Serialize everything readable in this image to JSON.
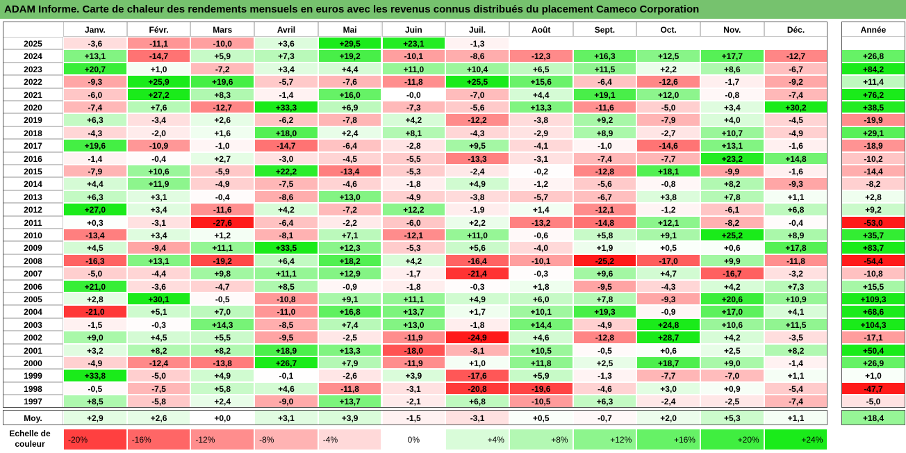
{
  "title": "ADAM Informe. Carte de chaleur des rendements mensuels en euros avec les revenus connus distribués du placement Cameco Corporation",
  "chart_data": {
    "type": "heatmap",
    "months": [
      "Janv.",
      "Févr.",
      "Mars",
      "Avril",
      "Mai",
      "Juin",
      "Juil.",
      "Août",
      "Sept.",
      "Oct.",
      "Nov.",
      "Déc."
    ],
    "annual_label": "Année",
    "rows": [
      {
        "year": "2025",
        "values": [
          "-3,6",
          "-11,1",
          "-10,0",
          "+3,6",
          "+29,5",
          "+23,1",
          "-1,3",
          "",
          "",
          "",
          "",
          ""
        ],
        "annual": ""
      },
      {
        "year": "2024",
        "values": [
          "+13,1",
          "-14,7",
          "+5,9",
          "+7,3",
          "+19,2",
          "-10,1",
          "-8,6",
          "-12,3",
          "+16,3",
          "+12,5",
          "+17,7",
          "-12,7"
        ],
        "annual": "+26,8"
      },
      {
        "year": "2023",
        "values": [
          "+20,7",
          "+1,0",
          "-7,2",
          "+3,4",
          "+4,4",
          "+11,0",
          "+10,4",
          "+6,5",
          "+11,5",
          "+2,2",
          "+8,6",
          "-6,7"
        ],
        "annual": "+84,2"
      },
      {
        "year": "2022",
        "values": [
          "-9,3",
          "+25,9",
          "+19,6",
          "-5,7",
          "-7,6",
          "-11,8",
          "+25,5",
          "+15,6",
          "-6,4",
          "-12,6",
          "-1,7",
          "-9,2"
        ],
        "annual": "+11,4"
      },
      {
        "year": "2021",
        "values": [
          "-6,0",
          "+27,2",
          "+8,3",
          "-1,4",
          "+16,0",
          "-0,0",
          "-7,0",
          "+4,4",
          "+19,1",
          "+12,0",
          "-0,8",
          "-7,4"
        ],
        "annual": "+76,2"
      },
      {
        "year": "2020",
        "values": [
          "-7,4",
          "+7,6",
          "-12,7",
          "+33,3",
          "+6,9",
          "-7,3",
          "-5,6",
          "+13,3",
          "-11,6",
          "-5,0",
          "+3,4",
          "+30,2"
        ],
        "annual": "+38,5"
      },
      {
        "year": "2019",
        "values": [
          "+6,3",
          "-3,4",
          "+2,6",
          "-6,2",
          "-7,8",
          "+4,2",
          "-12,2",
          "-3,8",
          "+9,2",
          "-7,9",
          "+4,0",
          "-4,5"
        ],
        "annual": "-19,9"
      },
      {
        "year": "2018",
        "values": [
          "-4,3",
          "-2,0",
          "+1,6",
          "+18,0",
          "+2,4",
          "+8,1",
          "-4,3",
          "-2,9",
          "+8,9",
          "-2,7",
          "+10,7",
          "-4,9"
        ],
        "annual": "+29,1"
      },
      {
        "year": "2017",
        "values": [
          "+19,6",
          "-10,9",
          "-1,0",
          "-14,7",
          "-6,4",
          "-2,8",
          "+9,5",
          "-4,1",
          "-1,0",
          "-14,6",
          "+13,1",
          "-1,6"
        ],
        "annual": "-18,9"
      },
      {
        "year": "2016",
        "values": [
          "-1,4",
          "-0,4",
          "+2,7",
          "-3,0",
          "-4,5",
          "-5,5",
          "-13,3",
          "-3,1",
          "-7,4",
          "-7,7",
          "+23,2",
          "+14,8"
        ],
        "annual": "-10,2"
      },
      {
        "year": "2015",
        "values": [
          "-7,9",
          "+10,6",
          "-5,9",
          "+22,2",
          "-13,4",
          "-5,3",
          "-2,4",
          "-0,2",
          "-12,8",
          "+18,1",
          "-9,9",
          "-1,6"
        ],
        "annual": "-14,4"
      },
      {
        "year": "2014",
        "values": [
          "+4,4",
          "+11,9",
          "-4,9",
          "-7,5",
          "-4,6",
          "-1,8",
          "+4,9",
          "-1,2",
          "-5,6",
          "-0,8",
          "+8,2",
          "-9,3"
        ],
        "annual": "-8,2"
      },
      {
        "year": "2013",
        "values": [
          "+6,3",
          "+3,1",
          "-0,4",
          "-8,6",
          "+13,0",
          "-4,9",
          "-3,8",
          "-5,7",
          "-6,7",
          "+3,8",
          "+7,8",
          "+1,1"
        ],
        "annual": "+2,8"
      },
      {
        "year": "2012",
        "values": [
          "+27,0",
          "+3,4",
          "-11,6",
          "+4,2",
          "-7,2",
          "+12,2",
          "-1,9",
          "+1,4",
          "-12,1",
          "-1,2",
          "-6,1",
          "+6,8"
        ],
        "annual": "+9,2"
      },
      {
        "year": "2011",
        "values": [
          "+0,3",
          "-3,1",
          "-27,6",
          "-6,4",
          "-2,2",
          "-6,0",
          "+2,2",
          "-13,2",
          "-14,8",
          "+12,1",
          "-8,2",
          "-0,4"
        ],
        "annual": "-53,0"
      },
      {
        "year": "2010",
        "values": [
          "-13,4",
          "+3,4",
          "+1,2",
          "-8,1",
          "+7,1",
          "-12,1",
          "+11,0",
          "-0,6",
          "+5,8",
          "+9,1",
          "+25,2",
          "+8,9"
        ],
        "annual": "+35,7"
      },
      {
        "year": "2009",
        "values": [
          "+4,5",
          "-9,4",
          "+11,1",
          "+33,5",
          "+12,3",
          "-5,3",
          "+5,6",
          "-4,0",
          "+1,9",
          "+0,5",
          "+0,6",
          "+17,8"
        ],
        "annual": "+83,7"
      },
      {
        "year": "2008",
        "values": [
          "-16,3",
          "+13,1",
          "-19,2",
          "+6,4",
          "+18,2",
          "+4,2",
          "-16,4",
          "-10,1",
          "-25,2",
          "-17,0",
          "+9,9",
          "-11,8"
        ],
        "annual": "-54,4"
      },
      {
        "year": "2007",
        "values": [
          "-5,0",
          "-4,4",
          "+9,8",
          "+11,1",
          "+12,9",
          "-1,7",
          "-21,4",
          "-0,3",
          "+9,6",
          "+4,7",
          "-16,7",
          "-3,2"
        ],
        "annual": "-10,8"
      },
      {
        "year": "2006",
        "values": [
          "+21,0",
          "-3,6",
          "-4,7",
          "+8,5",
          "-0,9",
          "-1,8",
          "-0,3",
          "+1,8",
          "-9,5",
          "-4,3",
          "+4,2",
          "+7,3"
        ],
        "annual": "+15,5"
      },
      {
        "year": "2005",
        "values": [
          "+2,8",
          "+30,1",
          "-0,5",
          "-10,8",
          "+9,1",
          "+11,1",
          "+4,9",
          "+6,0",
          "+7,8",
          "-9,3",
          "+20,6",
          "+10,9"
        ],
        "annual": "+109,3"
      },
      {
        "year": "2004",
        "values": [
          "-21,0",
          "+5,1",
          "+7,0",
          "-11,0",
          "+16,8",
          "+13,7",
          "+1,7",
          "+10,1",
          "+19,3",
          "-0,9",
          "+17,0",
          "+4,1"
        ],
        "annual": "+68,6"
      },
      {
        "year": "2003",
        "values": [
          "-1,5",
          "-0,3",
          "+14,3",
          "-8,5",
          "+7,4",
          "+13,0",
          "-1,8",
          "+14,4",
          "-4,9",
          "+24,8",
          "+10,6",
          "+11,5"
        ],
        "annual": "+104,3"
      },
      {
        "year": "2002",
        "values": [
          "+9,0",
          "+4,5",
          "+5,5",
          "-9,5",
          "-2,5",
          "-11,9",
          "-24,9",
          "+4,6",
          "-12,8",
          "+28,7",
          "+4,2",
          "-3,5"
        ],
        "annual": "-17,1"
      },
      {
        "year": "2001",
        "values": [
          "+3,2",
          "+8,2",
          "+8,2",
          "+18,9",
          "+13,3",
          "-18,0",
          "-8,1",
          "+10,5",
          "-0,5",
          "+0,6",
          "+2,5",
          "+8,2"
        ],
        "annual": "+50,4"
      },
      {
        "year": "2000",
        "values": [
          "-4,9",
          "-12,4",
          "-13,8",
          "+26,7",
          "+7,9",
          "-11,9",
          "+1,0",
          "+11,8",
          "+2,5",
          "+18,7",
          "+9,0",
          "-1,4"
        ],
        "annual": "+26,9"
      },
      {
        "year": "1999",
        "values": [
          "+33,8",
          "-5,0",
          "+4,9",
          "-0,1",
          "-2,6",
          "+3,9",
          "-17,6",
          "+5,9",
          "-1,3",
          "-7,7",
          "-7,0",
          "+1,1"
        ],
        "annual": "+1,0"
      },
      {
        "year": "1998",
        "values": [
          "-0,5",
          "-7,5",
          "+5,8",
          "+4,6",
          "-11,8",
          "-3,1",
          "-20,8",
          "-19,6",
          "-4,6",
          "+3,0",
          "+0,9",
          "-5,4"
        ],
        "annual": "-47,7"
      },
      {
        "year": "1997",
        "values": [
          "+8,5",
          "-5,8",
          "+2,4",
          "-9,0",
          "+13,7",
          "-2,1",
          "+6,8",
          "-10,5",
          "+6,3",
          "-2,4",
          "-2,5",
          "-7,4"
        ],
        "annual": "-5,0"
      }
    ],
    "average": {
      "label": "Moy.",
      "values": [
        "+2,9",
        "+2,6",
        "+0,0",
        "+3,1",
        "+3,9",
        "-1,5",
        "-3,1",
        "+0,5",
        "-0,7",
        "+2,0",
        "+5,3",
        "+1,1"
      ],
      "annual": "+18,4"
    },
    "legend": {
      "label": "Echelle de couleur",
      "steps": [
        {
          "label": "-20%",
          "value": -20
        },
        {
          "label": "-16%",
          "value": -16
        },
        {
          "label": "-12%",
          "value": -12
        },
        {
          "label": "-8%",
          "value": -8
        },
        {
          "label": "-4%",
          "value": -4
        },
        {
          "label": "0%",
          "value": 0
        },
        {
          "label": "+4%",
          "value": 4
        },
        {
          "label": "+8%",
          "value": 8
        },
        {
          "label": "+12%",
          "value": 12
        },
        {
          "label": "+16%",
          "value": 16
        },
        {
          "label": "+20%",
          "value": 20
        },
        {
          "label": "+24%",
          "value": 24
        }
      ]
    },
    "colors": {
      "negative": "#ff1a1a",
      "neutral": "#ffffff",
      "positive": "#1aeb1a",
      "title_bg": "#76c26e"
    }
  }
}
